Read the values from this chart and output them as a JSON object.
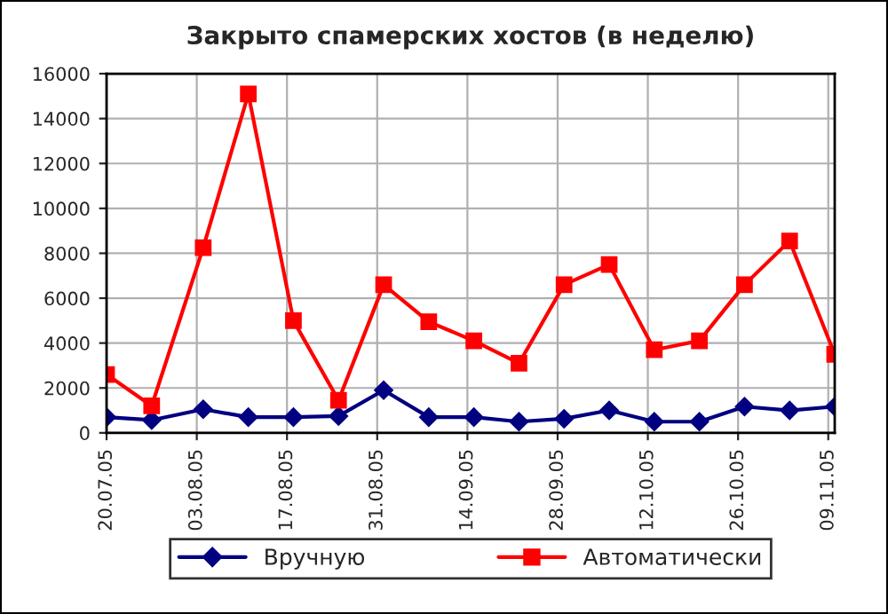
{
  "chart_data": {
    "type": "line",
    "title": "Закрыто спамерских хостов (в неделю)",
    "x": [
      "2005-07-20",
      "2005-07-27",
      "2005-08-04",
      "2005-08-11",
      "2005-08-18",
      "2005-08-25",
      "2005-09-01",
      "2005-09-08",
      "2005-09-15",
      "2005-09-22",
      "2005-09-29",
      "2005-10-06",
      "2005-10-13",
      "2005-10-20",
      "2005-10-27",
      "2005-11-03",
      "2005-11-10"
    ],
    "series": [
      {
        "name": "Вручную",
        "color": "#000080",
        "marker": "diamond",
        "values": [
          700,
          570,
          1050,
          700,
          700,
          750,
          1900,
          700,
          700,
          500,
          630,
          1000,
          500,
          500,
          1170,
          1000,
          1170
        ]
      },
      {
        "name": "Автоматически",
        "color": "#ff0000",
        "marker": "square",
        "values": [
          2600,
          1200,
          8250,
          15100,
          5000,
          1450,
          6600,
          4950,
          4100,
          3100,
          6600,
          7500,
          3700,
          4100,
          6600,
          8550,
          3500
        ]
      }
    ],
    "xlim": [
      "2005-07-20",
      "2005-11-10"
    ],
    "xticks": [
      {
        "value": "2005-07-20",
        "label": "20.07.05"
      },
      {
        "value": "2005-08-03",
        "label": "03.08.05"
      },
      {
        "value": "2005-08-17",
        "label": "17.08.05"
      },
      {
        "value": "2005-08-31",
        "label": "31.08.05"
      },
      {
        "value": "2005-09-14",
        "label": "14.09.05"
      },
      {
        "value": "2005-09-28",
        "label": "28.09.05"
      },
      {
        "value": "2005-10-12",
        "label": "12.10.05"
      },
      {
        "value": "2005-10-26",
        "label": "26.10.05"
      },
      {
        "value": "2005-11-09",
        "label": "09.11.05"
      }
    ],
    "ylim": [
      0,
      16000
    ],
    "yticks": [
      0,
      2000,
      4000,
      6000,
      8000,
      10000,
      12000,
      14000,
      16000
    ],
    "grid": true,
    "legend": "bottom",
    "line_style": "solid"
  }
}
